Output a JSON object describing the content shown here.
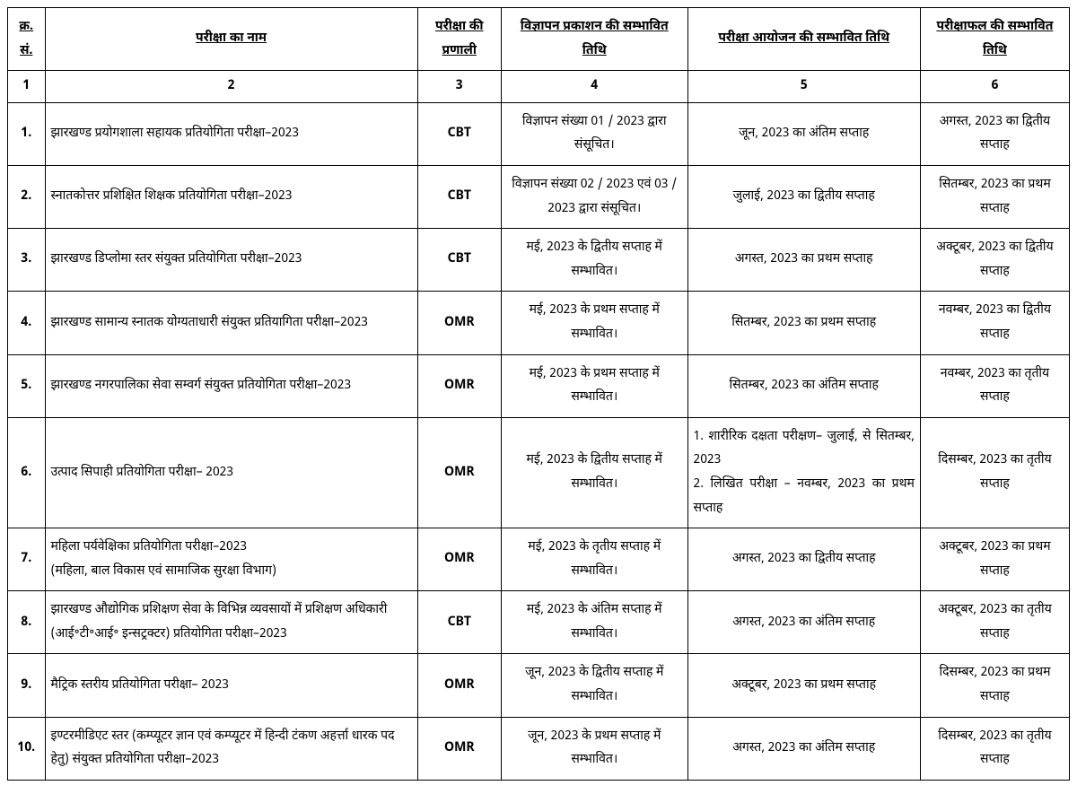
{
  "headers": {
    "sn": "क्र. सं.",
    "name": "परीक्षा का नाम",
    "mode": "परीक्षा की प्रणाली",
    "ad": "विज्ञापन प्रकाशन की सम्भावित तिथि",
    "exam": "परीक्षा आयोजन की सम्भावित तिथि",
    "res": "परीक्षाफल की सम्भावित तिथि"
  },
  "colnums": {
    "c1": "1",
    "c2": "2",
    "c3": "3",
    "c4": "4",
    "c5": "5",
    "c6": "6"
  },
  "rows": [
    {
      "sn": "1.",
      "name": "झारखण्ड प्रयोगशाला सहायक प्रतियोगिता परीक्षा–2023",
      "mode": "CBT",
      "ad": "विज्ञापन संख्या 01 / 2023 द्वारा संसूचित।",
      "exam": "जून, 2023 का अंतिम सप्ताह",
      "exam_justify": false,
      "res": "अगस्त, 2023 का द्वितीय सप्ताह"
    },
    {
      "sn": "2.",
      "name": "स्नातकोत्तर प्रशिक्षित शिक्षक प्रतियोगिता परीक्षा–2023",
      "mode": "CBT",
      "ad": "विज्ञापन संख्या 02 / 2023 एवं 03 / 2023 द्वारा संसूचित।",
      "exam": "जुलाई, 2023 का द्वितीय सप्ताह",
      "exam_justify": false,
      "res": "सितम्बर, 2023 का प्रथम सप्ताह"
    },
    {
      "sn": "3.",
      "name": "झारखण्ड डिप्लोमा स्तर संयुक्त प्रतियोगिता परीक्षा–2023",
      "mode": "CBT",
      "ad": "मई, 2023 के द्वितीय सप्ताह में सम्भावित।",
      "exam": "अगस्त, 2023 का प्रथम सप्ताह",
      "exam_justify": false,
      "res": "अक्टूबर, 2023 का द्वितीय सप्ताह"
    },
    {
      "sn": "4.",
      "name": "झारखण्ड सामान्य स्नातक योग्यताधारी संयुक्त प्रतियागिता परीक्षा–2023",
      "mode": "OMR",
      "ad": "मई, 2023 के प्रथम सप्ताह में सम्भावित।",
      "exam": "सितम्बर, 2023 का प्रथम सप्ताह",
      "exam_justify": false,
      "res": "नवम्बर, 2023 का द्वितीय सप्ताह"
    },
    {
      "sn": "5.",
      "name": "झारखण्ड नगरपालिका सेवा सम्वर्ग संयुक्त प्रतियोगिता परीक्षा–2023",
      "mode": "OMR",
      "ad": "मई, 2023 के प्रथम सप्ताह में सम्भावित।",
      "exam": "सितम्बर, 2023 का अंतिम सप्ताह",
      "exam_justify": false,
      "res": "नवम्बर, 2023 का तृतीय सप्ताह"
    },
    {
      "sn": "6.",
      "name": "उत्पाद सिपाही प्रतियोगिता परीक्षा– 2023",
      "mode": "OMR",
      "ad": "मई, 2023 के द्वितीय सप्ताह में सम्भावित।",
      "exam": "1. शारीरिक दक्षता परीक्षण– जुलाई, से सितम्बर, 2023\n2. लिखित परीक्षा – नवम्बर, 2023 का प्रथम सप्ताह",
      "exam_justify": true,
      "res": "दिसम्बर, 2023 का तृतीय सप्ताह"
    },
    {
      "sn": "7.",
      "name": "महिला पर्यवेक्षिका प्रतियोगिता परीक्षा–2023\n(महिला, बाल विकास एवं सामाजिक सुरक्षा विभाग)",
      "mode": "OMR",
      "ad": "मई, 2023 के तृतीय सप्ताह में सम्भावित।",
      "exam": "अगस्त, 2023 का द्वितीय सप्ताह",
      "exam_justify": false,
      "res": "अक्टूबर, 2023 का प्रथम सप्ताह"
    },
    {
      "sn": "8.",
      "name": "झारखण्ड औद्योगिक प्रशिक्षण सेवा के विभिन्न व्यवसायों में प्रशिक्षण अधिकारी (आई॰टी॰आई॰ इन्सट्रक्टर) प्रतियोगिता परीक्षा–2023",
      "mode": "CBT",
      "ad": "मई, 2023 के अंतिम सप्ताह में सम्भावित।",
      "exam": "अगस्त, 2023 का अंतिम सप्ताह",
      "exam_justify": false,
      "res": "अक्टूबर, 2023 का तृतीय सप्ताह"
    },
    {
      "sn": "9.",
      "name": "मैट्रिक स्तरीय प्रतियोगिता परीक्षा– 2023",
      "mode": "OMR",
      "ad": "जून, 2023 के द्वितीय सप्ताह में सम्भावित।",
      "exam": "अक्टूबर, 2023 का प्रथम सप्ताह",
      "exam_justify": false,
      "res": "दिसम्बर, 2023 का प्रथम सप्ताह"
    },
    {
      "sn": "10.",
      "name": "इण्टरमीडिएट स्तर (कम्प्यूटर ज्ञान एवं कम्प्यूटर में हिन्दी टंकण अहर्त्ता धारक पद हेतु) संयुक्त प्रतियोगिता परीक्षा–2023",
      "mode": "OMR",
      "ad": "जून, 2023 के प्रथम सप्ताह में सम्भावित।",
      "exam": "अगस्त, 2023 का अंतिम सप्ताह",
      "exam_justify": false,
      "res": "दिसम्बर, 2023 का तृतीय सप्ताह"
    }
  ]
}
